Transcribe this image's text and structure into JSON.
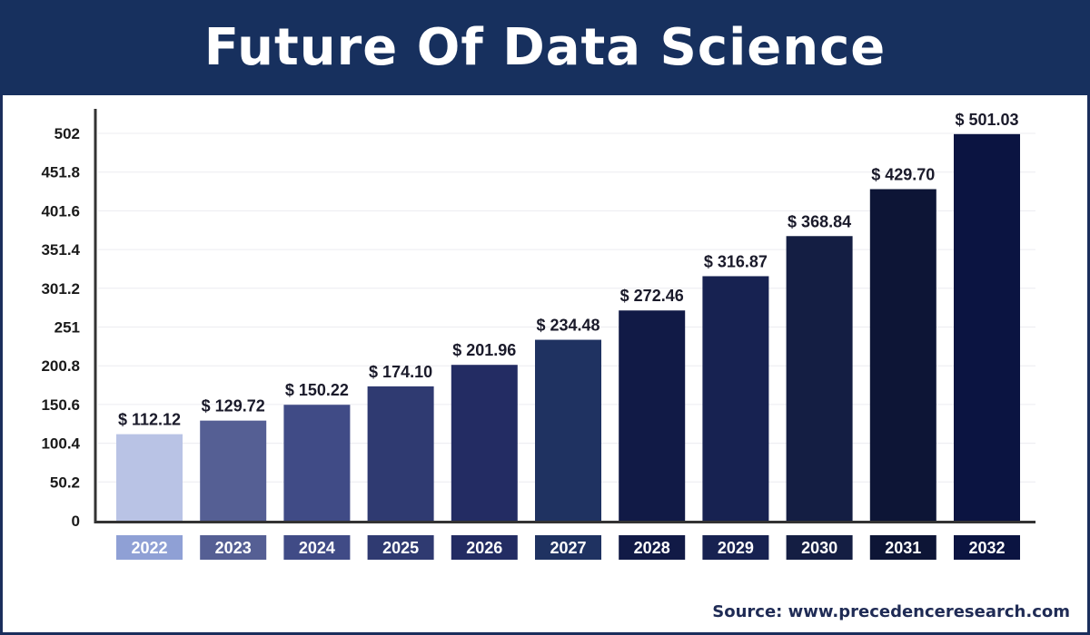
{
  "header": {
    "title": "Future Of Data Science"
  },
  "source": "Source: www.precedenceresearch.com",
  "chart_data": {
    "type": "bar",
    "title": "Future Of Data Science",
    "xlabel": "",
    "ylabel": "",
    "categories": [
      "2022",
      "2023",
      "2024",
      "2025",
      "2026",
      "2027",
      "2028",
      "2029",
      "2030",
      "2031",
      "2032"
    ],
    "values": [
      112.12,
      129.72,
      150.22,
      174.1,
      201.96,
      234.48,
      272.46,
      316.87,
      368.84,
      429.7,
      501.03
    ],
    "data_labels": [
      "$ 112.12",
      "$ 129.72",
      "$ 150.22",
      "$ 174.10",
      "$ 201.96",
      "$ 234.48",
      "$ 272.46",
      "$ 316.87",
      "$ 368.84",
      "$ 429.70",
      "$ 501.03"
    ],
    "y_ticks": [
      "0",
      "50.2",
      "100.4",
      "150.6",
      "200.8",
      "251",
      "301.2",
      "351.4",
      "401.6",
      "451.8",
      "502"
    ],
    "ylim": [
      0,
      502
    ],
    "grid": true,
    "legend": "none",
    "colors": [
      "#b9c3e5",
      "#555f94",
      "#404b86",
      "#2f3a71",
      "#232c63",
      "#1f3261",
      "#111a46",
      "#172251",
      "#141e43",
      "#0d1536",
      "#0b1441"
    ],
    "year_label_colors": [
      "#8fa0d5",
      "#555f94",
      "#404b86",
      "#2f3a71",
      "#232c63",
      "#1f3261",
      "#111a46",
      "#172251",
      "#141e43",
      "#0d1536",
      "#0b1441"
    ]
  }
}
